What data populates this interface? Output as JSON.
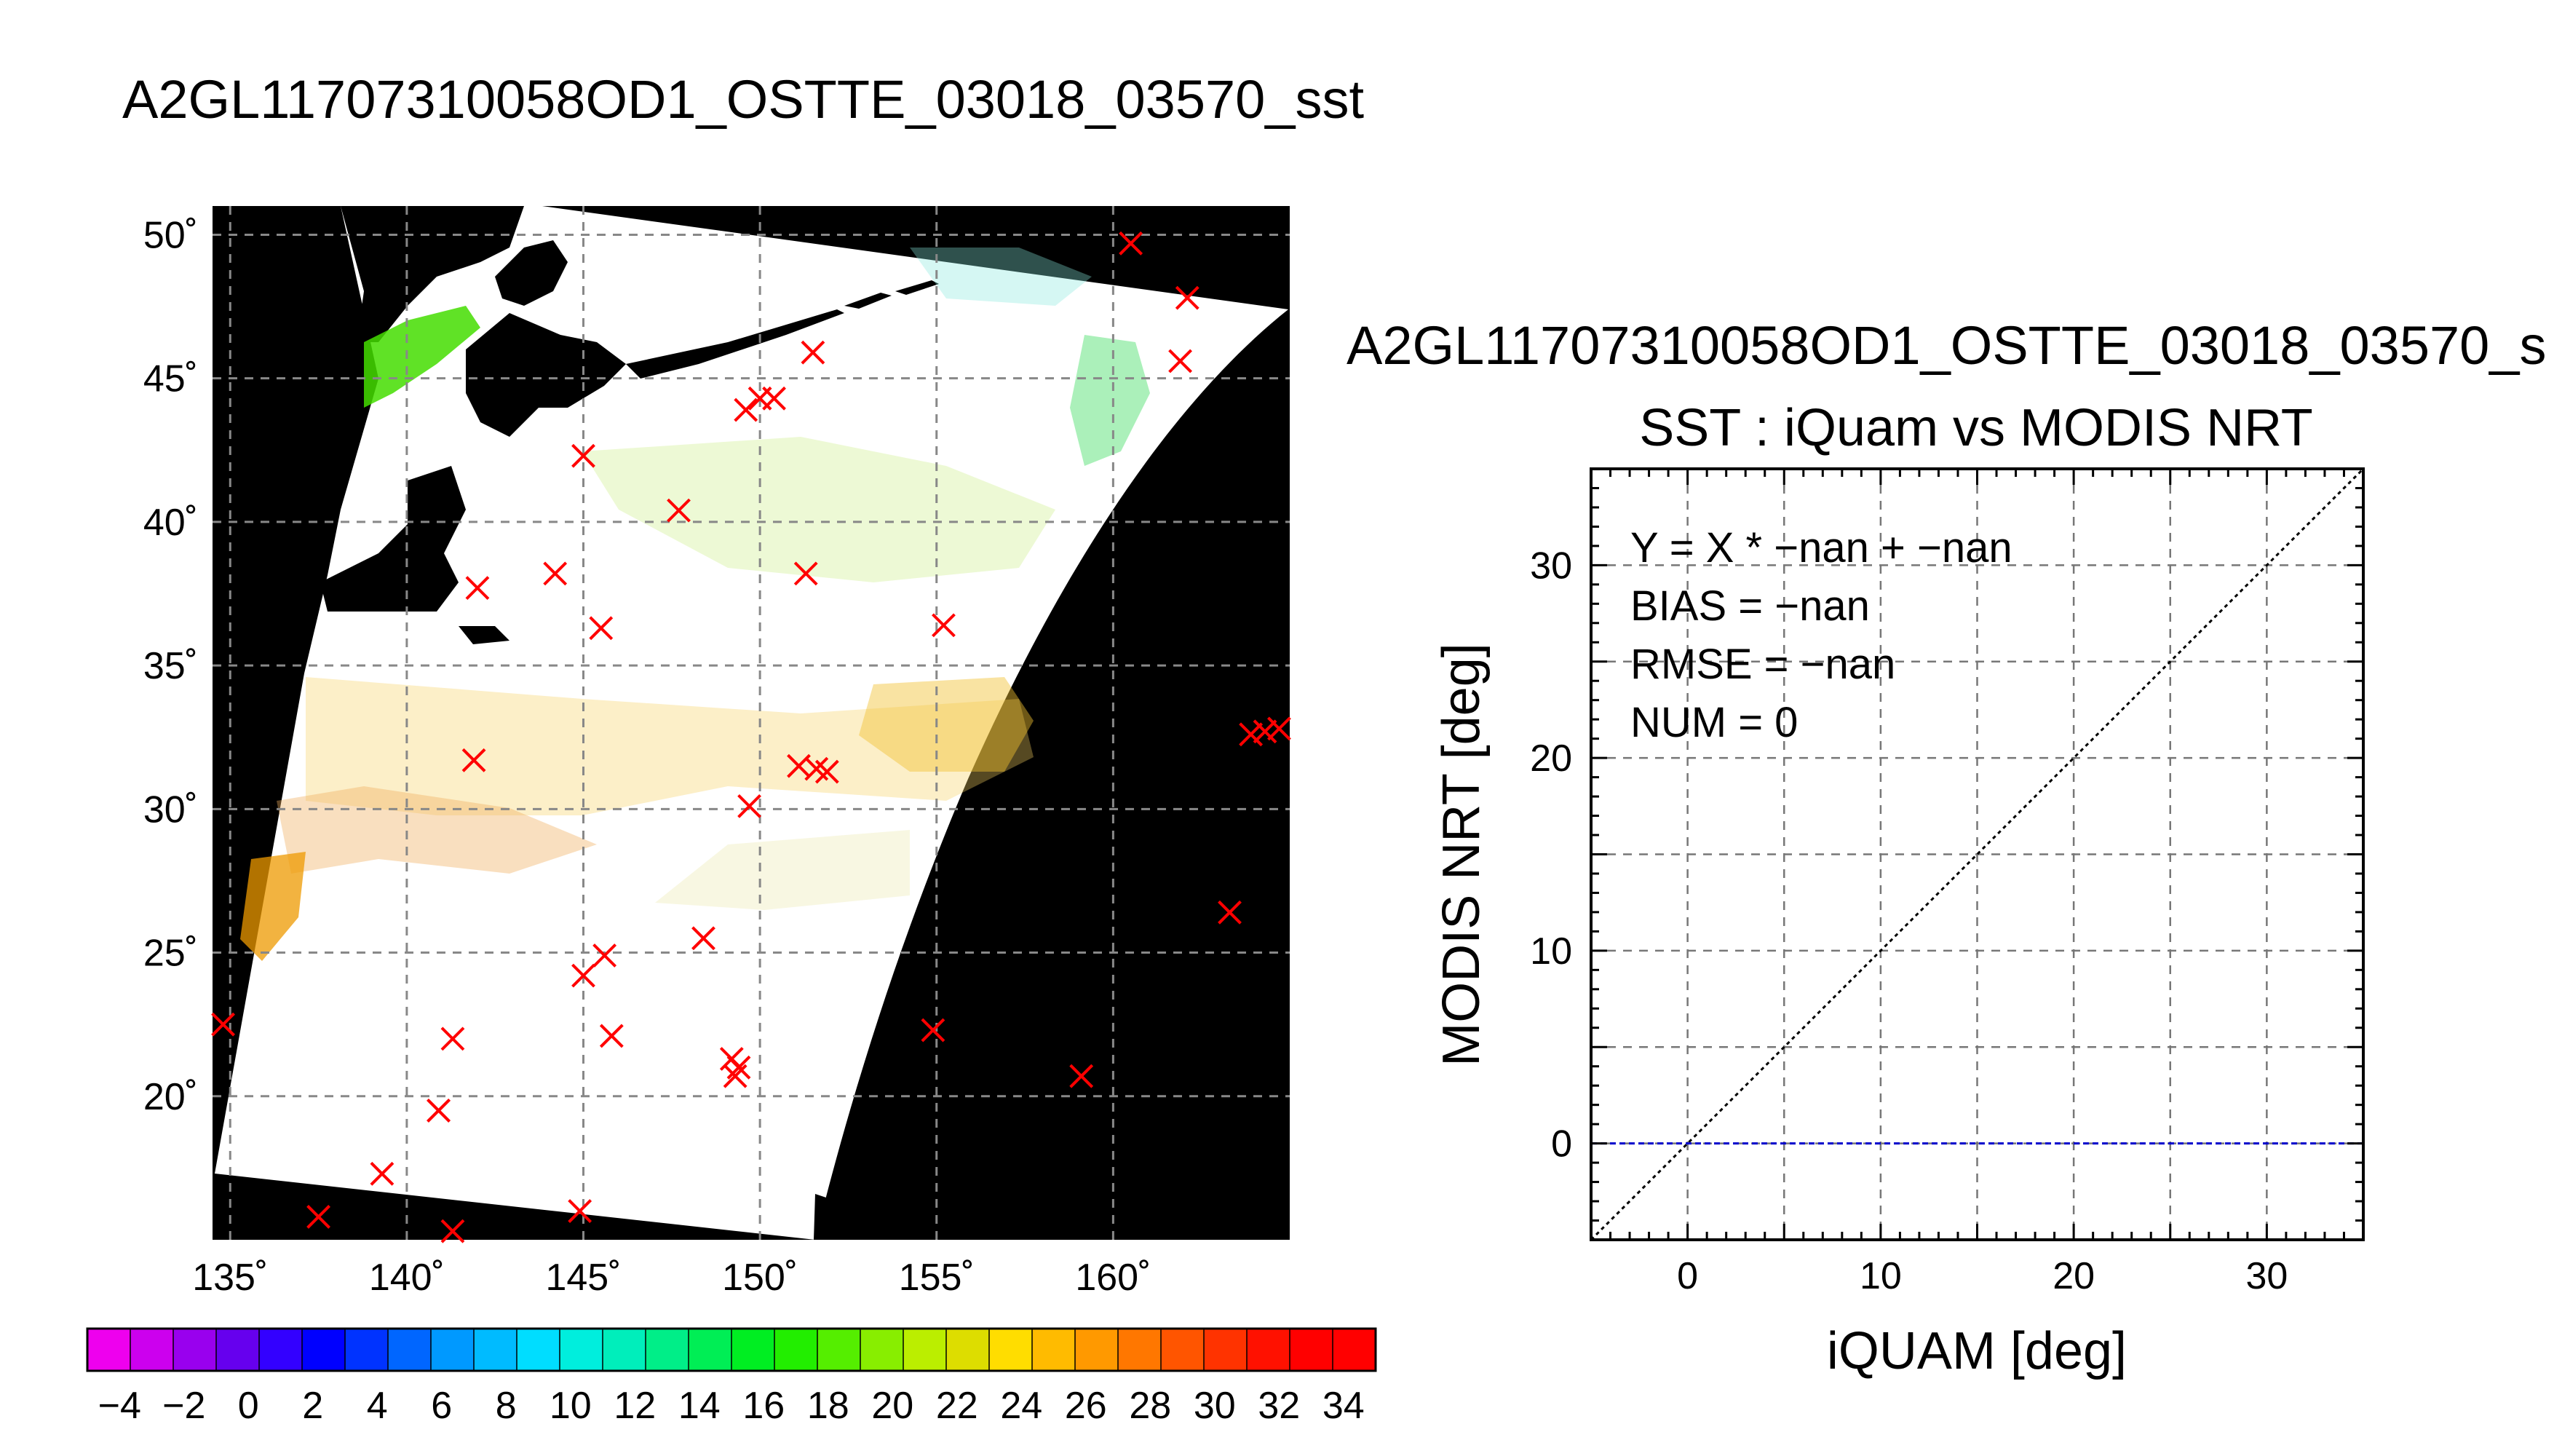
{
  "page": {
    "main_title": "A2GL11707310058OD1_OSTTE_03018_03570_sst",
    "scatter_title": "A2GL11707310058OD1_OSTTE_03018_03570_s"
  },
  "colors": {
    "land": "#000000",
    "swath": "#ffffff",
    "marker": "#ff0000",
    "zero_line": "#0000cc",
    "grid": "#888888"
  },
  "chart_data": [
    {
      "type": "map",
      "title": "A2GL11707310058OD1_OSTTE_03018_03570_sst",
      "x_ticks": [
        "135˚",
        "140˚",
        "145˚",
        "150˚",
        "155˚",
        "160˚"
      ],
      "y_ticks": [
        "50˚",
        "45˚",
        "40˚",
        "35˚",
        "30˚",
        "25˚",
        "20˚"
      ],
      "lon_range": [
        134.5,
        165
      ],
      "lat_range": [
        15,
        51
      ],
      "grid": true,
      "markers": [
        {
          "lon": 160.5,
          "lat": 49.7
        },
        {
          "lon": 162.1,
          "lat": 47.8
        },
        {
          "lon": 161.9,
          "lat": 45.6
        },
        {
          "lon": 151.5,
          "lat": 45.9
        },
        {
          "lon": 150.0,
          "lat": 44.3
        },
        {
          "lon": 150.4,
          "lat": 44.3
        },
        {
          "lon": 149.6,
          "lat": 43.9
        },
        {
          "lon": 145.0,
          "lat": 42.3
        },
        {
          "lon": 147.7,
          "lat": 40.4
        },
        {
          "lon": 144.2,
          "lat": 38.2
        },
        {
          "lon": 151.3,
          "lat": 38.2
        },
        {
          "lon": 142.0,
          "lat": 37.7
        },
        {
          "lon": 145.5,
          "lat": 36.3
        },
        {
          "lon": 155.2,
          "lat": 36.4
        },
        {
          "lon": 141.9,
          "lat": 31.7
        },
        {
          "lon": 151.1,
          "lat": 31.5
        },
        {
          "lon": 151.6,
          "lat": 31.4
        },
        {
          "lon": 151.9,
          "lat": 31.3
        },
        {
          "lon": 149.7,
          "lat": 30.1
        },
        {
          "lon": 148.4,
          "lat": 25.5
        },
        {
          "lon": 145.6,
          "lat": 24.9
        },
        {
          "lon": 145.0,
          "lat": 24.2
        },
        {
          "lon": 134.8,
          "lat": 22.5
        },
        {
          "lon": 141.3,
          "lat": 22.0
        },
        {
          "lon": 145.8,
          "lat": 22.1
        },
        {
          "lon": 154.9,
          "lat": 22.3
        },
        {
          "lon": 149.2,
          "lat": 21.3
        },
        {
          "lon": 149.4,
          "lat": 21.0
        },
        {
          "lon": 149.3,
          "lat": 20.7
        },
        {
          "lon": 159.1,
          "lat": 20.7
        },
        {
          "lon": 140.9,
          "lat": 19.5
        },
        {
          "lon": 140.9,
          "lat": 19.5
        },
        {
          "lon": 139.3,
          "lat": 17.3
        },
        {
          "lon": 137.5,
          "lat": 15.8
        },
        {
          "lon": 144.9,
          "lat": 16.0
        },
        {
          "lon": 141.3,
          "lat": 15.3
        },
        {
          "lon": 163.3,
          "lat": 26.4
        },
        {
          "lon": 163.9,
          "lat": 32.6
        },
        {
          "lon": 164.3,
          "lat": 32.7
        },
        {
          "lon": 164.7,
          "lat": 32.8
        }
      ]
    },
    {
      "type": "colorbar",
      "tick_labels": [
        "−4",
        "−2",
        "0",
        "2",
        "4",
        "6",
        "8",
        "10",
        "12",
        "14",
        "16",
        "18",
        "20",
        "22",
        "24",
        "26",
        "28",
        "30",
        "32",
        "34"
      ],
      "range": [
        -5,
        35
      ],
      "colors": [
        "#ee00ee",
        "#cc00ee",
        "#9900ee",
        "#6600ee",
        "#3300ff",
        "#0000ff",
        "#0033ff",
        "#0066ff",
        "#0099ff",
        "#00bbff",
        "#00ddff",
        "#00eedd",
        "#00eebb",
        "#00ee88",
        "#00ee55",
        "#00ee22",
        "#22ee00",
        "#55ee00",
        "#88ee00",
        "#bbee00",
        "#dddd00",
        "#ffdd00",
        "#ffbb00",
        "#ff9900",
        "#ff7700",
        "#ff5500",
        "#ff3300",
        "#ff1100",
        "#ff0000",
        "#ff0000"
      ]
    },
    {
      "type": "scatter",
      "title": "SST : iQuam vs MODIS NRT",
      "xlabel": "iQUAM [deg]",
      "ylabel": "MODIS NRT [deg]",
      "xlim": [
        -5,
        35
      ],
      "ylim": [
        -5,
        35
      ],
      "x_ticks": [
        "0",
        "10",
        "20",
        "30"
      ],
      "y_ticks": [
        "0",
        "10",
        "20",
        "30"
      ],
      "grid": true,
      "points": [],
      "lines": [
        {
          "name": "1:1",
          "x": [
            -5,
            35
          ],
          "y": [
            -5,
            35
          ],
          "style": "dotted",
          "color": "#000000"
        },
        {
          "name": "zero",
          "x": [
            -5,
            35
          ],
          "y": [
            0,
            0
          ],
          "style": "dashed",
          "color": "#0000cc"
        }
      ],
      "stats": {
        "equation": "Y = X * −nan + −nan",
        "bias": "BIAS = −nan",
        "rmse": "RMSE = −nan",
        "num": "NUM = 0"
      }
    }
  ]
}
